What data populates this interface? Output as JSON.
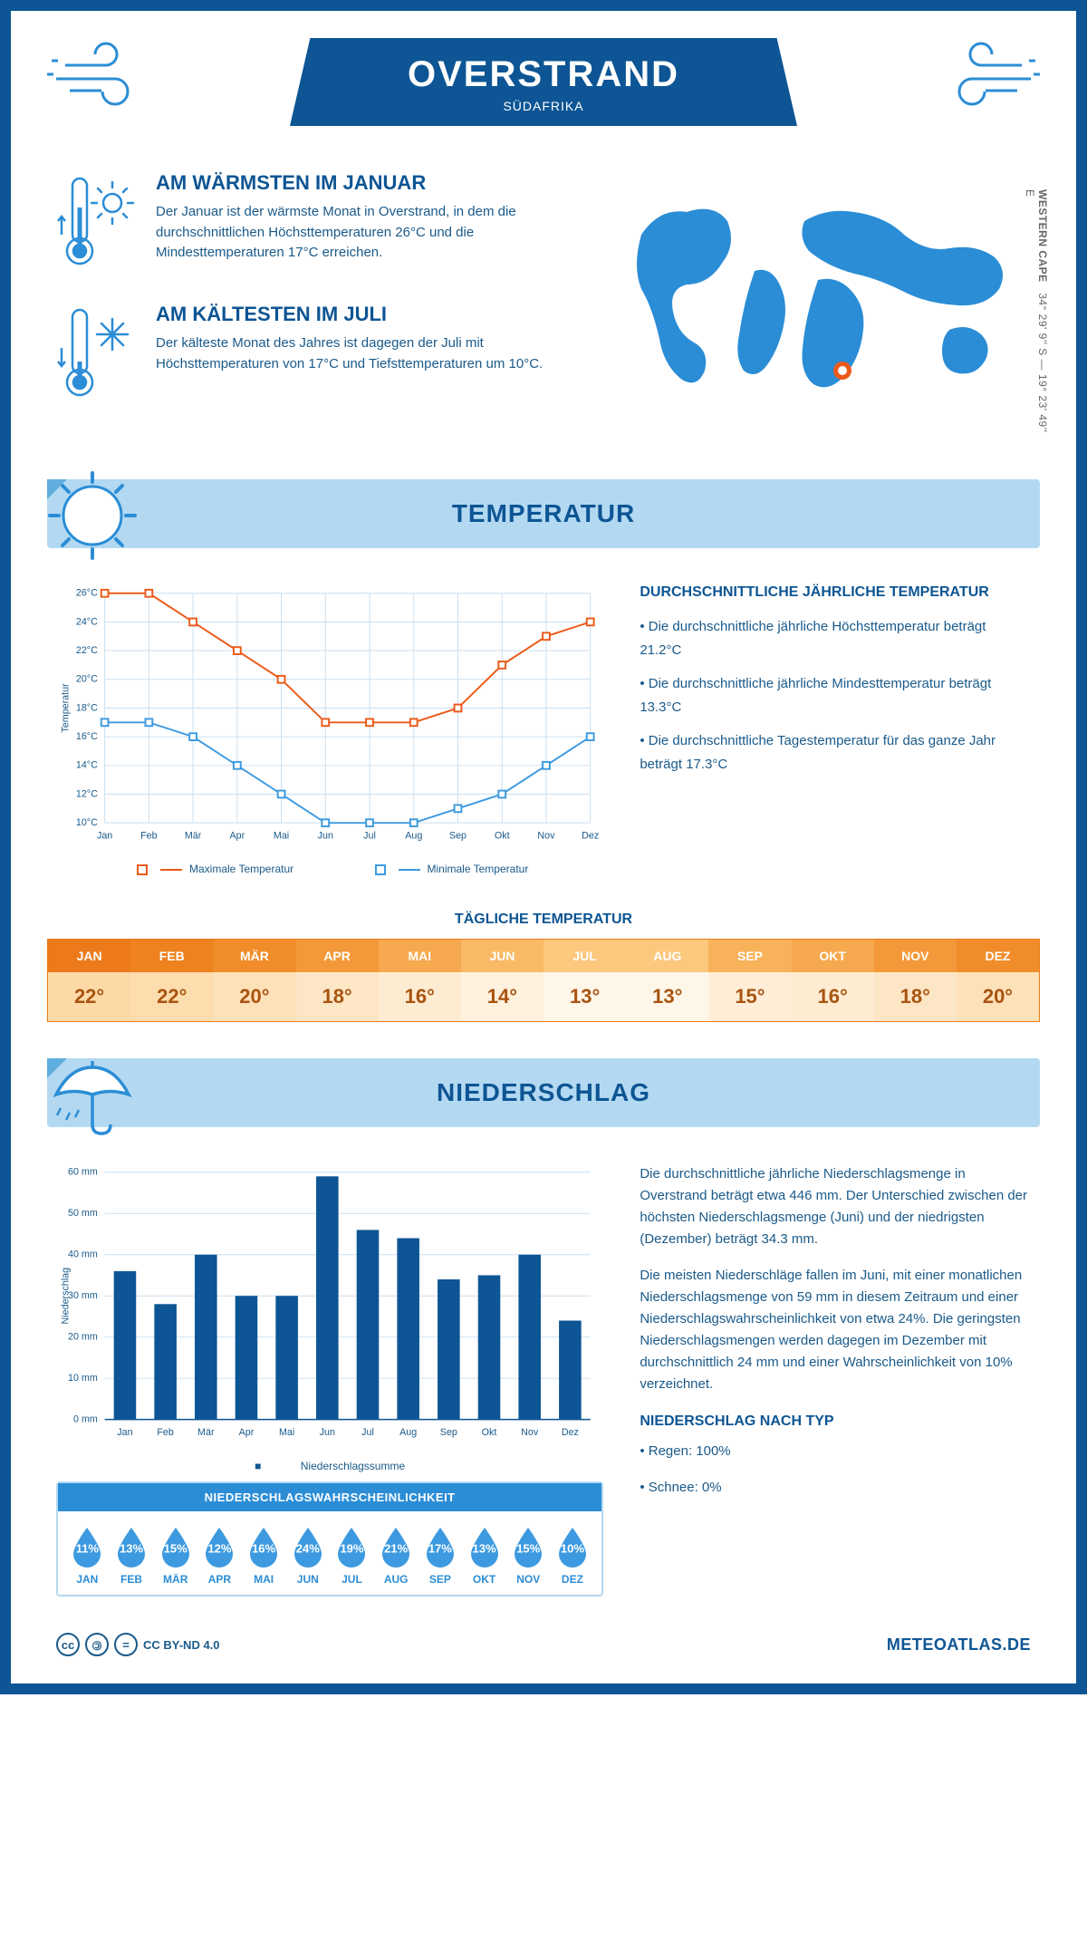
{
  "header": {
    "title": "OVERSTRAND",
    "subtitle": "SÜDAFRIKA"
  },
  "coords": {
    "lat": "34° 29' 9'' S",
    "lon": "19° 23' 49'' E",
    "region": "WESTERN CAPE"
  },
  "warmest": {
    "title": "AM WÄRMSTEN IM JANUAR",
    "text": "Der Januar ist der wärmste Monat in Overstrand, in dem die durchschnittlichen Höchsttemperaturen 26°C und die Mindesttemperaturen 17°C erreichen."
  },
  "coldest": {
    "title": "AM KÄLTESTEN IM JULI",
    "text": "Der kälteste Monat des Jahres ist dagegen der Juli mit Höchsttemperaturen von 17°C und Tiefsttemperaturen um 10°C."
  },
  "temp_section": {
    "title": "TEMPERATUR"
  },
  "temp_chart": {
    "type": "line",
    "months": [
      "Jan",
      "Feb",
      "Mär",
      "Apr",
      "Mai",
      "Jun",
      "Jul",
      "Aug",
      "Sep",
      "Okt",
      "Nov",
      "Dez"
    ],
    "max_series": {
      "label": "Maximale Temperatur",
      "color": "#ec5a1a",
      "values": [
        26,
        26,
        24,
        22,
        20,
        17,
        17,
        17,
        18,
        21,
        23,
        24
      ]
    },
    "min_series": {
      "label": "Minimale Temperatur",
      "color": "#3d9ae0",
      "values": [
        17,
        17,
        16,
        14,
        12,
        10,
        10,
        10,
        11,
        12,
        14,
        16
      ]
    },
    "y_label": "Temperatur",
    "y_ticks": [
      "10°C",
      "12°C",
      "14°C",
      "16°C",
      "18°C",
      "20°C",
      "22°C",
      "24°C",
      "26°C"
    ],
    "ylim": [
      10,
      26
    ],
    "grid_color": "#c9dff0",
    "line_width": 2
  },
  "temp_facts": {
    "title": "DURCHSCHNITTLICHE JÄHRLICHE TEMPERATUR",
    "items": [
      "• Die durchschnittliche jährliche Höchsttemperatur beträgt 21.2°C",
      "• Die durchschnittliche jährliche Mindesttemperatur beträgt 13.3°C",
      "• Die durchschnittliche Tagestemperatur für das ganze Jahr beträgt 17.3°C"
    ]
  },
  "daily_temp": {
    "title": "TÄGLICHE TEMPERATUR",
    "months": [
      "JAN",
      "FEB",
      "MÄR",
      "APR",
      "MAI",
      "JUN",
      "JUL",
      "AUG",
      "SEP",
      "OKT",
      "NOV",
      "DEZ"
    ],
    "values": [
      "22°",
      "22°",
      "20°",
      "18°",
      "16°",
      "14°",
      "13°",
      "13°",
      "15°",
      "16°",
      "18°",
      "20°"
    ],
    "head_colors": [
      "#ec7a1a",
      "#ed821e",
      "#f08d2a",
      "#f3993a",
      "#f6a94e",
      "#f9b965",
      "#fbc87e",
      "#fbc87e",
      "#f8b25a",
      "#f6a94e",
      "#f3993a",
      "#f08d2a"
    ],
    "body_colors": [
      "#fdd9a8",
      "#fddcae",
      "#fde1b9",
      "#fde6c5",
      "#feecd2",
      "#fef1de",
      "#fef6e9",
      "#fef6e9",
      "#feeed7",
      "#feecd2",
      "#fde6c5",
      "#fde1b9"
    ]
  },
  "precip_section": {
    "title": "NIEDERSCHLAG"
  },
  "precip_chart": {
    "type": "bar",
    "months": [
      "Jan",
      "Feb",
      "Mär",
      "Apr",
      "Mai",
      "Jun",
      "Jul",
      "Aug",
      "Sep",
      "Okt",
      "Nov",
      "Dez"
    ],
    "values": [
      36,
      28,
      40,
      30,
      30,
      59,
      46,
      44,
      34,
      35,
      40,
      24
    ],
    "bar_color": "#0d5594",
    "y_label": "Niederschlag",
    "y_ticks": [
      "0 mm",
      "10 mm",
      "20 mm",
      "30 mm",
      "40 mm",
      "50 mm",
      "60 mm"
    ],
    "ylim": [
      0,
      60
    ],
    "grid_color": "#c9dff0",
    "legend": "Niederschlagssumme"
  },
  "precip_text": {
    "p1": "Die durchschnittliche jährliche Niederschlagsmenge in Overstrand beträgt etwa 446 mm. Der Unterschied zwischen der höchsten Niederschlagsmenge (Juni) und der niedrigsten (Dezember) beträgt 34.3 mm.",
    "p2": "Die meisten Niederschläge fallen im Juni, mit einer monatlichen Niederschlagsmenge von 59 mm in diesem Zeitraum und einer Niederschlagswahrscheinlichkeit von etwa 24%. Die geringsten Niederschlagsmengen werden dagegen im Dezember mit durchschnittlich 24 mm und einer Wahrscheinlichkeit von 10% verzeichnet.",
    "type_title": "NIEDERSCHLAG NACH TYP",
    "type_items": [
      "• Regen: 100%",
      "• Schnee: 0%"
    ]
  },
  "probability": {
    "title": "NIEDERSCHLAGSWAHRSCHEINLICHKEIT",
    "months": [
      "JAN",
      "FEB",
      "MÄR",
      "APR",
      "MAI",
      "JUN",
      "JUL",
      "AUG",
      "SEP",
      "OKT",
      "NOV",
      "DEZ"
    ],
    "values": [
      "11%",
      "13%",
      "15%",
      "12%",
      "16%",
      "24%",
      "19%",
      "21%",
      "17%",
      "13%",
      "15%",
      "10%"
    ],
    "drop_color": "#3d9ae0"
  },
  "footer": {
    "license": "CC BY-ND 4.0",
    "brand": "METEOATLAS.DE"
  }
}
